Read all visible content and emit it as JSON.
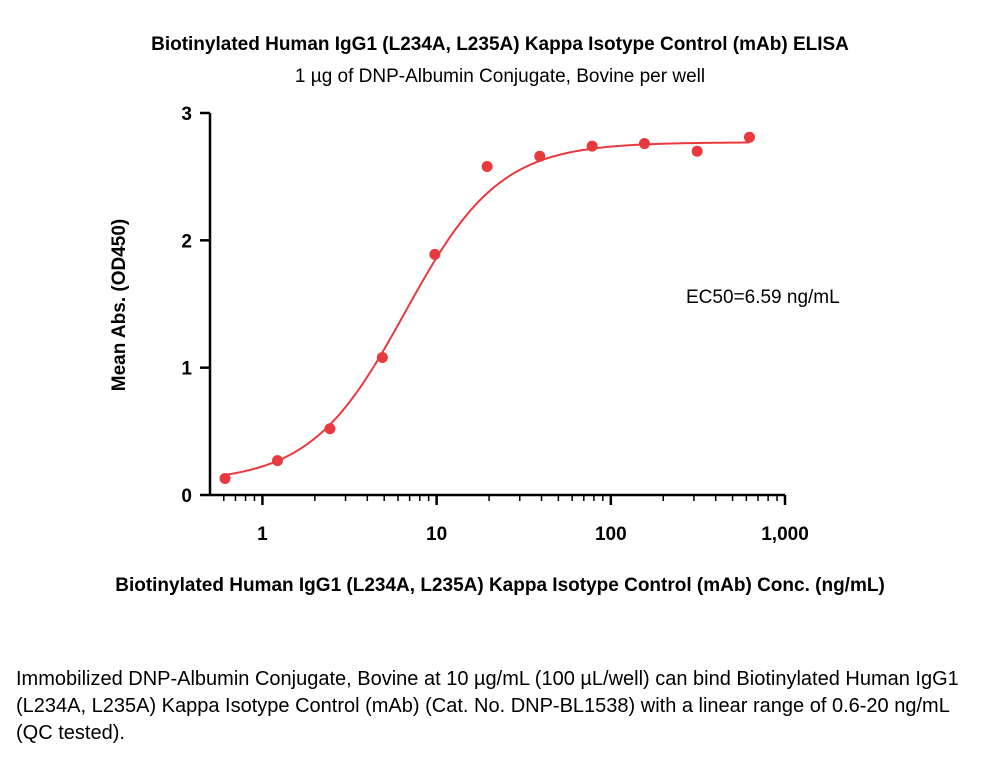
{
  "chart_data": {
    "type": "scatter",
    "title": "Biotinylated Human IgG1 (L234A, L235A) Kappa Isotype Control (mAb) ELISA",
    "subtitle": "1 µg of DNP-Albumin Conjugate, Bovine per well",
    "xlabel": "Biotinylated Human IgG1 (L234A, L235A) Kappa Isotype Control (mAb) Conc. (ng/mL)",
    "ylabel": "Mean Abs. (OD450)",
    "x_scale": "log",
    "xlim": [
      0.5,
      1000
    ],
    "ylim": [
      0,
      3
    ],
    "x_ticks": [
      1,
      10,
      100,
      1000
    ],
    "x_tick_labels": [
      "1",
      "10",
      "100",
      "1,000"
    ],
    "y_ticks": [
      0,
      1,
      2,
      3
    ],
    "y_tick_labels": [
      "0",
      "1",
      "2",
      "3"
    ],
    "grid": false,
    "marker_color": "#e8393f",
    "series": [
      {
        "x": [
          0.61,
          1.22,
          2.44,
          4.88,
          9.77,
          19.5,
          39.1,
          78.1,
          156,
          313,
          625
        ],
        "y": [
          0.13,
          0.27,
          0.52,
          1.08,
          1.89,
          2.58,
          2.66,
          2.74,
          2.76,
          2.7,
          2.81
        ]
      }
    ],
    "fit_curve": {
      "model": "4PL",
      "bottom": 0.1,
      "top": 2.77,
      "ec50": 6.59,
      "hill": 1.6,
      "x_range": [
        0.6,
        625
      ]
    },
    "annotations": [
      "EC50=6.59 ng/mL"
    ]
  },
  "caption": "Immobilized DNP-Albumin Conjugate, Bovine at 10 µg/mL (100 µL/well) can bind Biotinylated Human IgG1 (L234A, L235A) Kappa Isotype Control (mAb) (Cat. No. DNP-BL1538) with a linear range of 0.6-20 ng/mL (QC tested)."
}
